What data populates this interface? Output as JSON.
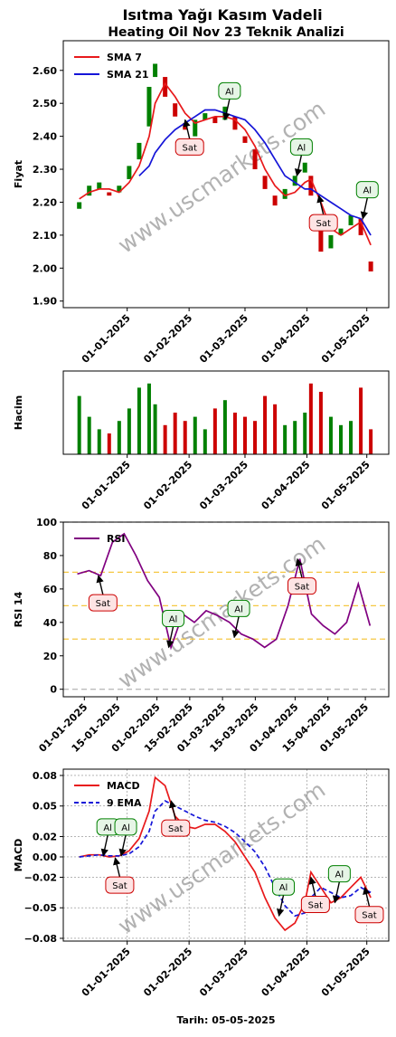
{
  "chart_data": [
    {
      "type": "candlestick",
      "title": "Isıtma Yağı Kasım Vadeli",
      "subtitle": "Heating Oil Nov 23 Teknik Analizi",
      "ylabel": "Fiyat",
      "watermark": "www.uscmarkets.com",
      "legend": "upper left",
      "up_color": "#008000",
      "down_color": "#cc0000",
      "x": [
        "2024-12-08",
        "2024-12-13",
        "2024-12-18",
        "2024-12-23",
        "2024-12-28",
        "2025-01-02",
        "2025-01-07",
        "2025-01-12",
        "2025-01-15",
        "2025-01-20",
        "2025-01-25",
        "2025-01-30",
        "2025-02-04",
        "2025-02-09",
        "2025-02-14",
        "2025-02-19",
        "2025-02-24",
        "2025-03-01",
        "2025-03-06",
        "2025-03-11",
        "2025-03-16",
        "2025-03-21",
        "2025-03-26",
        "2025-03-31",
        "2025-04-03",
        "2025-04-08",
        "2025-04-13",
        "2025-04-18",
        "2025-04-23",
        "2025-04-28",
        "2025-05-03"
      ],
      "open": [
        2.18,
        2.22,
        2.24,
        2.23,
        2.23,
        2.27,
        2.33,
        2.43,
        2.58,
        2.58,
        2.5,
        2.44,
        2.4,
        2.45,
        2.46,
        2.45,
        2.46,
        2.4,
        2.36,
        2.28,
        2.22,
        2.21,
        2.25,
        2.29,
        2.28,
        2.15,
        2.06,
        2.1,
        2.13,
        2.15,
        2.02
      ],
      "close": [
        2.2,
        2.25,
        2.26,
        2.22,
        2.25,
        2.31,
        2.38,
        2.55,
        2.62,
        2.52,
        2.46,
        2.42,
        2.45,
        2.47,
        2.44,
        2.49,
        2.42,
        2.38,
        2.3,
        2.24,
        2.19,
        2.24,
        2.28,
        2.32,
        2.22,
        2.05,
        2.1,
        2.12,
        2.16,
        2.1,
        1.99
      ],
      "series": [
        {
          "name": "SMA 7",
          "color": "#e8191b",
          "values": [
            2.21,
            2.23,
            2.24,
            2.24,
            2.23,
            2.26,
            2.31,
            2.4,
            2.5,
            2.56,
            2.52,
            2.47,
            2.44,
            2.45,
            2.46,
            2.46,
            2.45,
            2.42,
            2.37,
            2.3,
            2.25,
            2.22,
            2.23,
            2.26,
            2.27,
            2.2,
            2.12,
            2.1,
            2.12,
            2.14,
            2.07
          ]
        },
        {
          "name": "SMA 21",
          "color": "#1515d8",
          "values": [
            null,
            null,
            null,
            null,
            null,
            null,
            2.28,
            2.31,
            2.35,
            2.39,
            2.42,
            2.44,
            2.46,
            2.48,
            2.48,
            2.47,
            2.46,
            2.45,
            2.42,
            2.38,
            2.33,
            2.28,
            2.26,
            2.24,
            2.24,
            2.22,
            2.2,
            2.18,
            2.16,
            2.15,
            2.1
          ]
        }
      ],
      "xlim": [
        "2024-11-30",
        "2025-05-12"
      ],
      "xticks": [
        {
          "value": "2025-01-01",
          "label": "01-01-2025"
        },
        {
          "value": "2025-02-01",
          "label": "01-02-2025"
        },
        {
          "value": "2025-03-01",
          "label": "01-03-2025"
        },
        {
          "value": "2025-04-01",
          "label": "01-04-2025"
        },
        {
          "value": "2025-05-01",
          "label": "01-05-2025"
        }
      ],
      "ylim": [
        1.88,
        2.69
      ],
      "yticks": [
        {
          "value": 1.9,
          "label": "1.90"
        },
        {
          "value": 2.0,
          "label": "2.00"
        },
        {
          "value": 2.1,
          "label": "2.10"
        },
        {
          "value": 2.2,
          "label": "2.20"
        },
        {
          "value": 2.3,
          "label": "2.30"
        },
        {
          "value": 2.4,
          "label": "2.40"
        },
        {
          "value": 2.5,
          "label": "2.50"
        },
        {
          "value": 2.6,
          "label": "2.60"
        }
      ],
      "annotations": [
        {
          "text": "Sat",
          "color": "red",
          "x": "2025-01-30",
          "y": 2.45
        },
        {
          "text": "Al",
          "color": "green",
          "x": "2025-02-19",
          "y": 2.45
        },
        {
          "text": "Al",
          "color": "green",
          "x": "2025-03-27",
          "y": 2.28
        },
        {
          "text": "Sat",
          "color": "red",
          "x": "2025-04-07",
          "y": 2.22
        },
        {
          "text": "Al",
          "color": "green",
          "x": "2025-04-29",
          "y": 2.15
        }
      ]
    },
    {
      "type": "bar",
      "ylabel": "Hacim",
      "x": [
        "2024-12-08",
        "2024-12-13",
        "2024-12-18",
        "2024-12-23",
        "2024-12-28",
        "2025-01-02",
        "2025-01-07",
        "2025-01-12",
        "2025-01-15",
        "2025-01-20",
        "2025-01-25",
        "2025-01-30",
        "2025-02-04",
        "2025-02-09",
        "2025-02-14",
        "2025-02-19",
        "2025-02-24",
        "2025-03-01",
        "2025-03-06",
        "2025-03-11",
        "2025-03-16",
        "2025-03-21",
        "2025-03-26",
        "2025-03-31",
        "2025-04-03",
        "2025-04-08",
        "2025-04-13",
        "2025-04-18",
        "2025-04-23",
        "2025-04-28",
        "2025-05-03"
      ],
      "values": [
        70,
        45,
        30,
        25,
        40,
        55,
        80,
        85,
        60,
        35,
        50,
        40,
        45,
        30,
        55,
        65,
        50,
        45,
        40,
        70,
        60,
        35,
        40,
        50,
        85,
        75,
        45,
        35,
        40,
        80,
        30
      ],
      "colors": [
        "#008000",
        "#008000",
        "#008000",
        "#cc0000",
        "#008000",
        "#008000",
        "#008000",
        "#008000",
        "#008000",
        "#cc0000",
        "#cc0000",
        "#cc0000",
        "#008000",
        "#008000",
        "#cc0000",
        "#008000",
        "#cc0000",
        "#cc0000",
        "#cc0000",
        "#cc0000",
        "#cc0000",
        "#008000",
        "#008000",
        "#008000",
        "#cc0000",
        "#cc0000",
        "#008000",
        "#008000",
        "#008000",
        "#cc0000",
        "#cc0000"
      ],
      "xlim": [
        "2024-11-30",
        "2025-05-12"
      ],
      "xticks": [
        {
          "value": "2025-01-01",
          "label": "01-01-2025"
        },
        {
          "value": "2025-02-01",
          "label": "01-02-2025"
        },
        {
          "value": "2025-03-01",
          "label": "01-03-2025"
        },
        {
          "value": "2025-04-01",
          "label": "01-04-2025"
        },
        {
          "value": "2025-05-01",
          "label": "01-05-2025"
        }
      ],
      "ylim": [
        0,
        100
      ]
    },
    {
      "type": "line",
      "ylabel": "RSI 14",
      "watermark": "www.uscmarkets.com",
      "legend": "upper left",
      "x": [
        "2024-12-29",
        "2025-01-03",
        "2025-01-08",
        "2025-01-13",
        "2025-01-18",
        "2025-01-23",
        "2025-01-28",
        "2025-02-02",
        "2025-02-07",
        "2025-02-12",
        "2025-02-17",
        "2025-02-22",
        "2025-02-27",
        "2025-03-04",
        "2025-03-09",
        "2025-03-14",
        "2025-03-19",
        "2025-03-24",
        "2025-03-29",
        "2025-04-03",
        "2025-04-08",
        "2025-04-13",
        "2025-04-18",
        "2025-04-23",
        "2025-04-28",
        "2025-05-03"
      ],
      "series": [
        {
          "name": "RSI",
          "color": "#800080",
          "dash": false,
          "values": [
            69,
            71,
            68,
            88,
            93,
            80,
            65,
            55,
            25,
            45,
            40,
            47,
            44,
            40,
            33,
            30,
            25,
            30,
            50,
            78,
            45,
            38,
            33,
            40,
            63,
            38
          ]
        }
      ],
      "hlines": [
        {
          "y": 70,
          "color": "#f5c842"
        },
        {
          "y": 50,
          "color": "#f5c842"
        },
        {
          "y": 30,
          "color": "#f5c842"
        },
        {
          "y": 0,
          "color": "#bbbbbb"
        },
        {
          "y": 100,
          "color": "#bbbbbb"
        }
      ],
      "xlim": [
        "2024-12-23",
        "2025-05-11"
      ],
      "xticks": [
        {
          "value": "2025-01-01",
          "label": "01-01-2025"
        },
        {
          "value": "2025-01-15",
          "label": "15-01-2025"
        },
        {
          "value": "2025-02-01",
          "label": "01-02-2025"
        },
        {
          "value": "2025-02-15",
          "label": "15-02-2025"
        },
        {
          "value": "2025-03-01",
          "label": "01-03-2025"
        },
        {
          "value": "2025-03-15",
          "label": "15-03-2025"
        },
        {
          "value": "2025-04-01",
          "label": "01-04-2025"
        },
        {
          "value": "2025-04-15",
          "label": "15-04-2025"
        },
        {
          "value": "2025-05-01",
          "label": "01-05-2025"
        }
      ],
      "ylim": [
        -4.5,
        100
      ],
      "yticks": [
        0,
        20,
        40,
        60,
        80,
        100
      ],
      "annotations": [
        {
          "text": "Sat",
          "color": "red",
          "x": "2025-01-07",
          "y": 68
        },
        {
          "text": "Al",
          "color": "green",
          "x": "2025-02-06",
          "y": 25
        },
        {
          "text": "Al",
          "color": "green",
          "x": "2025-03-06",
          "y": 31
        },
        {
          "text": "Sat",
          "color": "red",
          "x": "2025-04-02",
          "y": 78
        }
      ]
    },
    {
      "type": "line",
      "ylabel": "MACD",
      "xlabel": "Tarih: 05-05-2025",
      "watermark": "www.uscmarkets.com",
      "legend": "upper left",
      "grid": true,
      "x": [
        "2024-12-08",
        "2024-12-13",
        "2024-12-18",
        "2024-12-23",
        "2024-12-28",
        "2025-01-02",
        "2025-01-07",
        "2025-01-12",
        "2025-01-15",
        "2025-01-20",
        "2025-01-25",
        "2025-01-30",
        "2025-02-04",
        "2025-02-09",
        "2025-02-14",
        "2025-02-19",
        "2025-02-24",
        "2025-03-01",
        "2025-03-06",
        "2025-03-11",
        "2025-03-16",
        "2025-03-21",
        "2025-03-26",
        "2025-03-31",
        "2025-04-03",
        "2025-04-08",
        "2025-04-13",
        "2025-04-18",
        "2025-04-23",
        "2025-04-28",
        "2025-05-03"
      ],
      "series": [
        {
          "name": "MACD",
          "color": "#e8191b",
          "dash": false,
          "values": [
            0.0,
            0.002,
            0.002,
            0.0,
            0.001,
            0.006,
            0.018,
            0.045,
            0.078,
            0.07,
            0.04,
            0.03,
            0.028,
            0.032,
            0.032,
            0.025,
            0.015,
            0.0,
            -0.015,
            -0.04,
            -0.06,
            -0.072,
            -0.065,
            -0.045,
            -0.015,
            -0.03,
            -0.045,
            -0.04,
            -0.03,
            -0.02,
            -0.04
          ]
        },
        {
          "name": "9 EMA",
          "color": "#1515d8",
          "dash": true,
          "values": [
            0.0,
            0.001,
            0.002,
            0.001,
            0.001,
            0.003,
            0.01,
            0.025,
            0.045,
            0.055,
            0.05,
            0.045,
            0.04,
            0.036,
            0.034,
            0.03,
            0.024,
            0.015,
            0.005,
            -0.01,
            -0.03,
            -0.048,
            -0.058,
            -0.055,
            -0.04,
            -0.03,
            -0.035,
            -0.04,
            -0.038,
            -0.03,
            -0.035
          ]
        }
      ],
      "xlim": [
        "2024-11-30",
        "2025-05-12"
      ],
      "xticks": [
        {
          "value": "2025-01-01",
          "label": "01-01-2025"
        },
        {
          "value": "2025-02-01",
          "label": "01-02-2025"
        },
        {
          "value": "2025-03-01",
          "label": "01-03-2025"
        },
        {
          "value": "2025-04-01",
          "label": "01-04-2025"
        },
        {
          "value": "2025-05-01",
          "label": "01-05-2025"
        }
      ],
      "ylim": [
        -0.0827,
        0.0862
      ],
      "yticks": [
        {
          "value": -0.08,
          "label": "−0.08"
        },
        {
          "value": -0.05,
          "label": "−0.05"
        },
        {
          "value": -0.02,
          "label": "−0.02"
        },
        {
          "value": 0,
          "label": "0.00"
        },
        {
          "value": 0.02,
          "label": "0.02"
        },
        {
          "value": 0.05,
          "label": "0.05"
        },
        {
          "value": 0.08,
          "label": "0.08"
        }
      ],
      "annotations": [
        {
          "text": "Al",
          "color": "green",
          "x": "2024-12-20",
          "y": 0.001
        },
        {
          "text": "Sat",
          "color": "red",
          "x": "2024-12-26",
          "y": -0.001
        },
        {
          "text": "Al",
          "color": "green",
          "x": "2024-12-29",
          "y": 0.001
        },
        {
          "text": "Sat",
          "color": "red",
          "x": "2025-01-23",
          "y": 0.055
        },
        {
          "text": "Al",
          "color": "green",
          "x": "2025-03-18",
          "y": -0.058
        },
        {
          "text": "Sat",
          "color": "red",
          "x": "2025-04-03",
          "y": -0.02
        },
        {
          "text": "Al",
          "color": "green",
          "x": "2025-04-15",
          "y": -0.045
        },
        {
          "text": "Sat",
          "color": "red",
          "x": "2025-04-30",
          "y": -0.03
        }
      ]
    }
  ]
}
